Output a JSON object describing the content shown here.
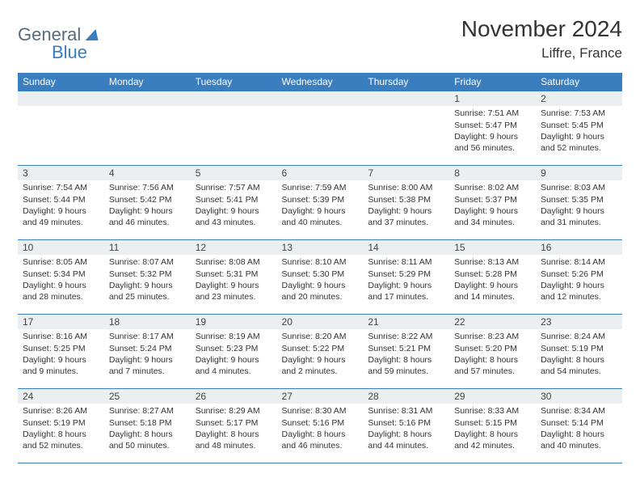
{
  "brand": {
    "word1": "General",
    "word2": "Blue"
  },
  "title": "November 2024",
  "location": "Liffre, France",
  "colors": {
    "header_bg": "#3a7ebf",
    "header_text": "#ffffff",
    "daynum_bg": "#eceff1",
    "border": "#3a7ebf",
    "body_text": "#333333",
    "logo_gray": "#5a6a7a",
    "logo_blue": "#3a7ebf",
    "page_bg": "#ffffff"
  },
  "fonts": {
    "title_pt": 28,
    "location_pt": 17,
    "dayhead_pt": 12,
    "daynum_pt": 12,
    "body_pt": 10.5
  },
  "weekday_labels": [
    "Sunday",
    "Monday",
    "Tuesday",
    "Wednesday",
    "Thursday",
    "Friday",
    "Saturday"
  ],
  "line_labels": {
    "sunrise": "Sunrise:",
    "sunset": "Sunset:",
    "daylight": "Daylight:"
  },
  "weeks": [
    [
      null,
      null,
      null,
      null,
      null,
      {
        "n": "1",
        "sunrise": "7:51 AM",
        "sunset": "5:47 PM",
        "daylight": "9 hours and 56 minutes."
      },
      {
        "n": "2",
        "sunrise": "7:53 AM",
        "sunset": "5:45 PM",
        "daylight": "9 hours and 52 minutes."
      }
    ],
    [
      {
        "n": "3",
        "sunrise": "7:54 AM",
        "sunset": "5:44 PM",
        "daylight": "9 hours and 49 minutes."
      },
      {
        "n": "4",
        "sunrise": "7:56 AM",
        "sunset": "5:42 PM",
        "daylight": "9 hours and 46 minutes."
      },
      {
        "n": "5",
        "sunrise": "7:57 AM",
        "sunset": "5:41 PM",
        "daylight": "9 hours and 43 minutes."
      },
      {
        "n": "6",
        "sunrise": "7:59 AM",
        "sunset": "5:39 PM",
        "daylight": "9 hours and 40 minutes."
      },
      {
        "n": "7",
        "sunrise": "8:00 AM",
        "sunset": "5:38 PM",
        "daylight": "9 hours and 37 minutes."
      },
      {
        "n": "8",
        "sunrise": "8:02 AM",
        "sunset": "5:37 PM",
        "daylight": "9 hours and 34 minutes."
      },
      {
        "n": "9",
        "sunrise": "8:03 AM",
        "sunset": "5:35 PM",
        "daylight": "9 hours and 31 minutes."
      }
    ],
    [
      {
        "n": "10",
        "sunrise": "8:05 AM",
        "sunset": "5:34 PM",
        "daylight": "9 hours and 28 minutes."
      },
      {
        "n": "11",
        "sunrise": "8:07 AM",
        "sunset": "5:32 PM",
        "daylight": "9 hours and 25 minutes."
      },
      {
        "n": "12",
        "sunrise": "8:08 AM",
        "sunset": "5:31 PM",
        "daylight": "9 hours and 23 minutes."
      },
      {
        "n": "13",
        "sunrise": "8:10 AM",
        "sunset": "5:30 PM",
        "daylight": "9 hours and 20 minutes."
      },
      {
        "n": "14",
        "sunrise": "8:11 AM",
        "sunset": "5:29 PM",
        "daylight": "9 hours and 17 minutes."
      },
      {
        "n": "15",
        "sunrise": "8:13 AM",
        "sunset": "5:28 PM",
        "daylight": "9 hours and 14 minutes."
      },
      {
        "n": "16",
        "sunrise": "8:14 AM",
        "sunset": "5:26 PM",
        "daylight": "9 hours and 12 minutes."
      }
    ],
    [
      {
        "n": "17",
        "sunrise": "8:16 AM",
        "sunset": "5:25 PM",
        "daylight": "9 hours and 9 minutes."
      },
      {
        "n": "18",
        "sunrise": "8:17 AM",
        "sunset": "5:24 PM",
        "daylight": "9 hours and 7 minutes."
      },
      {
        "n": "19",
        "sunrise": "8:19 AM",
        "sunset": "5:23 PM",
        "daylight": "9 hours and 4 minutes."
      },
      {
        "n": "20",
        "sunrise": "8:20 AM",
        "sunset": "5:22 PM",
        "daylight": "9 hours and 2 minutes."
      },
      {
        "n": "21",
        "sunrise": "8:22 AM",
        "sunset": "5:21 PM",
        "daylight": "8 hours and 59 minutes."
      },
      {
        "n": "22",
        "sunrise": "8:23 AM",
        "sunset": "5:20 PM",
        "daylight": "8 hours and 57 minutes."
      },
      {
        "n": "23",
        "sunrise": "8:24 AM",
        "sunset": "5:19 PM",
        "daylight": "8 hours and 54 minutes."
      }
    ],
    [
      {
        "n": "24",
        "sunrise": "8:26 AM",
        "sunset": "5:19 PM",
        "daylight": "8 hours and 52 minutes."
      },
      {
        "n": "25",
        "sunrise": "8:27 AM",
        "sunset": "5:18 PM",
        "daylight": "8 hours and 50 minutes."
      },
      {
        "n": "26",
        "sunrise": "8:29 AM",
        "sunset": "5:17 PM",
        "daylight": "8 hours and 48 minutes."
      },
      {
        "n": "27",
        "sunrise": "8:30 AM",
        "sunset": "5:16 PM",
        "daylight": "8 hours and 46 minutes."
      },
      {
        "n": "28",
        "sunrise": "8:31 AM",
        "sunset": "5:16 PM",
        "daylight": "8 hours and 44 minutes."
      },
      {
        "n": "29",
        "sunrise": "8:33 AM",
        "sunset": "5:15 PM",
        "daylight": "8 hours and 42 minutes."
      },
      {
        "n": "30",
        "sunrise": "8:34 AM",
        "sunset": "5:14 PM",
        "daylight": "8 hours and 40 minutes."
      }
    ]
  ]
}
